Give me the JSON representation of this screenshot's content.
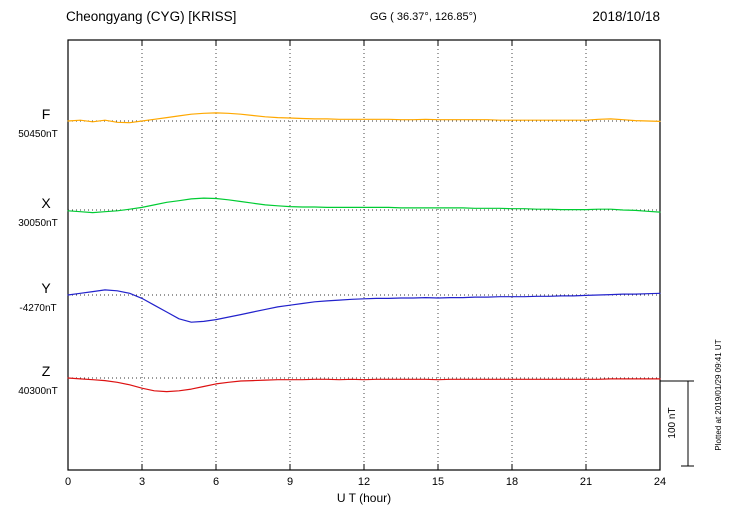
{
  "header": {
    "station": "Cheongyang (CYG)  [KRISS]",
    "coords": "GG ( 36.37°, 126.85°)",
    "date": "2018/10/18"
  },
  "axis": {
    "xlabel": "U T (hour)",
    "x_min": 0,
    "x_max": 24,
    "x_ticks": [
      0,
      3,
      6,
      9,
      12,
      15,
      18,
      21,
      24
    ]
  },
  "scale_bar": {
    "label": "100 nT",
    "nT": 100
  },
  "footer_note": "Plotted at 2019/01/29 09:41 UT",
  "chart_data": {
    "type": "line",
    "title": "Cheongyang (CYG) [KRISS] magnetogram 2018/10/18",
    "xlabel": "U T (hour)",
    "x_range_hours": [
      0,
      24
    ],
    "x_hours_step": 0.5,
    "grid": "dotted vertical every 3 h, dotted horizontal baseline per component",
    "scale_bar_nT": 100,
    "series": [
      {
        "name": "F",
        "baseline_label": "50450nT",
        "baseline_nT": 50450,
        "color": "#FFA800",
        "offsets_nT": [
          0,
          1,
          -1,
          1,
          -1.5,
          -2,
          0,
          2,
          4,
          6,
          8,
          9,
          9.5,
          9,
          8,
          6.5,
          5,
          4,
          3.5,
          3,
          2.5,
          2.5,
          2,
          2,
          2,
          2,
          2,
          1.5,
          1.5,
          2,
          1.5,
          1.5,
          1.5,
          1.5,
          1.5,
          1,
          1,
          1,
          1,
          1,
          1,
          1,
          1,
          2,
          2.5,
          1.5,
          0.5,
          0,
          -0.5
        ]
      },
      {
        "name": "X",
        "baseline_label": "30050nT",
        "baseline_nT": 30050,
        "color": "#00CC33",
        "offsets_nT": [
          -1,
          -2,
          -3,
          -2,
          -1,
          1,
          3,
          6,
          9,
          11,
          13,
          14,
          13.5,
          12,
          10,
          8,
          6,
          5,
          4,
          3.5,
          3.5,
          3,
          3,
          3,
          3,
          3,
          3,
          2.5,
          2.5,
          2.5,
          2.5,
          2.5,
          2.5,
          2,
          2,
          2,
          1.5,
          1.5,
          1,
          1,
          0.5,
          0.5,
          0.5,
          1,
          1,
          0,
          -0.5,
          -1.5,
          -2.5
        ]
      },
      {
        "name": "Y",
        "baseline_label": "-4270nT",
        "baseline_nT": -4270,
        "color": "#2222CC",
        "offsets_nT": [
          0,
          2,
          4,
          6,
          5,
          2,
          -4,
          -12,
          -20,
          -28,
          -32,
          -31,
          -29,
          -26,
          -23,
          -20,
          -17,
          -14,
          -12,
          -10,
          -8,
          -7,
          -6,
          -5,
          -4.5,
          -4,
          -4,
          -3.5,
          -3.5,
          -3,
          -3.5,
          -3,
          -3,
          -2.5,
          -2.5,
          -2,
          -2,
          -2,
          -1.5,
          -1.5,
          -1,
          -1,
          -0.5,
          0,
          0.5,
          1,
          1,
          1.5,
          2
        ]
      },
      {
        "name": "Z",
        "baseline_label": "40300nT",
        "baseline_nT": 40300,
        "color": "#DD1111",
        "offsets_nT": [
          0,
          -1,
          -2,
          -3,
          -5,
          -8,
          -12,
          -15,
          -16,
          -15,
          -13,
          -10,
          -7,
          -5,
          -3.5,
          -3,
          -2.5,
          -2,
          -2,
          -2,
          -1.5,
          -1.5,
          -2,
          -1.5,
          -2,
          -1.5,
          -1.5,
          -1.5,
          -1.5,
          -1.5,
          -2,
          -1.5,
          -1.5,
          -1.5,
          -1.5,
          -1.5,
          -1.5,
          -1.5,
          -1.5,
          -1.5,
          -1.5,
          -1.5,
          -1.5,
          -1.5,
          -1,
          -1,
          -1,
          -1,
          -1
        ]
      }
    ]
  }
}
